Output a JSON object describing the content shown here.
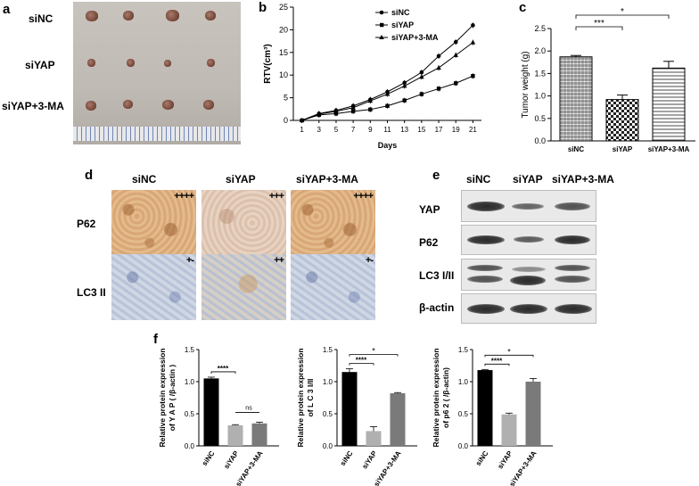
{
  "panels": {
    "a": {
      "label": "a",
      "rows": [
        "siNC",
        "siYAP",
        "siYAP+3-MA"
      ]
    },
    "b": {
      "label": "b",
      "chart_data": {
        "type": "line",
        "xlabel": "Days",
        "ylabel": "RTV(cm³)",
        "x": [
          1,
          3,
          5,
          7,
          9,
          11,
          13,
          15,
          17,
          19,
          21
        ],
        "x_ticks": [
          "1",
          "3",
          "5",
          "7",
          "9",
          "11",
          "13",
          "15",
          "17",
          "19",
          "21"
        ],
        "ylim": [
          0,
          25
        ],
        "y_ticks": [
          "0",
          "5",
          "10",
          "15",
          "20",
          "25"
        ],
        "series": [
          {
            "name": "siNC",
            "marker": "circle",
            "values": [
              0,
              1.5,
              2.2,
              3.2,
              4.6,
              6.3,
              8.3,
              10.6,
              14.2,
              17.3,
              21.0
            ]
          },
          {
            "name": "siYAP",
            "marker": "square",
            "values": [
              0,
              1.2,
              1.5,
              2.0,
              2.4,
              3.2,
              4.4,
              5.8,
              7.0,
              8.2,
              9.8
            ]
          },
          {
            "name": "siYAP+3-MA",
            "marker": "triangle",
            "values": [
              0,
              1.4,
              2.0,
              2.8,
              4.3,
              5.8,
              7.6,
              9.6,
              11.6,
              14.4,
              17.2
            ]
          }
        ]
      }
    },
    "c": {
      "label": "c",
      "chart_data": {
        "type": "bar",
        "ylabel": "Tumor weight (g)",
        "categories": [
          "siNC",
          "siYAP",
          "siYAP+3-MA"
        ],
        "values": [
          1.87,
          0.92,
          1.62
        ],
        "errors": [
          0.03,
          0.1,
          0.15
        ],
        "ylim": [
          0,
          2.5
        ],
        "y_ticks": [
          "0.0",
          "0.5",
          "1.0",
          "1.5",
          "2.0",
          "2.5"
        ],
        "annotations": [
          "***",
          "*"
        ]
      }
    },
    "d": {
      "label": "d",
      "columns": [
        "siNC",
        "siYAP",
        "siYAP+3-MA"
      ],
      "rows": [
        {
          "name": "P62",
          "scores": [
            "++++",
            "+++",
            "++++"
          ]
        },
        {
          "name": "LC3 II",
          "scores": [
            "+-",
            "++",
            "+-"
          ]
        }
      ]
    },
    "e": {
      "label": "e",
      "columns": [
        "siNC",
        "siYAP",
        "siYAP+3-MA"
      ],
      "rows": [
        "YAP",
        "P62",
        "LC3 I/II",
        "β-actin"
      ]
    },
    "f": {
      "label": "f",
      "charts": [
        {
          "type": "bar",
          "ylabel_lines": [
            "Relative protein expression",
            "of Y A P  ( /β-actin )"
          ],
          "categories": [
            "siNC",
            "siYAP",
            "siYAP+3-MA"
          ],
          "values": [
            1.05,
            0.32,
            0.35
          ],
          "errors": [
            0.02,
            0.01,
            0.02
          ],
          "ylim": [
            0,
            1.5
          ],
          "y_ticks": [
            "0.0",
            "0.5",
            "1.0",
            "1.5"
          ],
          "annotations": [
            "****",
            "ns"
          ]
        },
        {
          "type": "bar",
          "ylabel_lines": [
            "Relative protein expression",
            "of L C 3 I/II"
          ],
          "categories": [
            "siNC",
            "siYAP",
            "siYAP+3-MA"
          ],
          "values": [
            1.15,
            0.23,
            0.82
          ],
          "errors": [
            0.05,
            0.07,
            0.01
          ],
          "ylim": [
            0,
            1.5
          ],
          "y_ticks": [
            "0.0",
            "0.5",
            "1.0",
            "1.5"
          ],
          "annotations": [
            "****",
            "*"
          ]
        },
        {
          "type": "bar",
          "ylabel_lines": [
            "Relative protein expression",
            "of p6 2  ( /β-actin)"
          ],
          "categories": [
            "siNC",
            "siYAP",
            "siYAP+3-MA"
          ],
          "values": [
            1.18,
            0.49,
            1.0
          ],
          "errors": [
            0.01,
            0.02,
            0.05
          ],
          "ylim": [
            0,
            1.5
          ],
          "y_ticks": [
            "0.0",
            "0.5",
            "1.0",
            "1.5"
          ],
          "annotations": [
            "****",
            "*"
          ]
        }
      ]
    }
  },
  "colors": {
    "black": "#000000",
    "gray_light": "#b0b0b0",
    "gray_mid": "#7a7a7a"
  }
}
